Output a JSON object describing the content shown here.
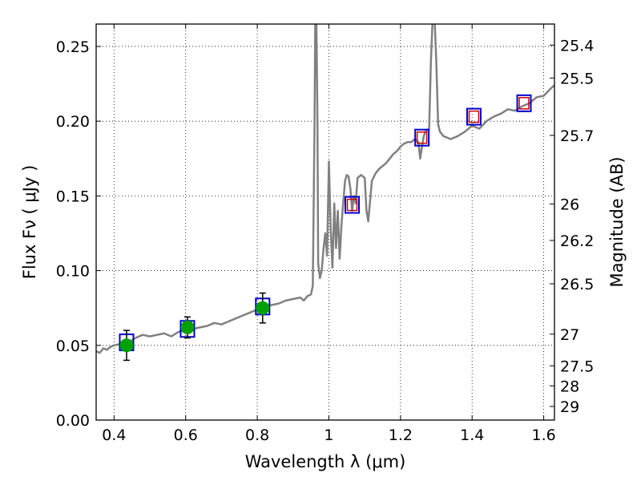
{
  "chart_data": {
    "type": "line",
    "title": "",
    "xlabel": "Wavelength  λ (μm)",
    "ylabel": "Flux  Fν  ( μJy )",
    "y2label": "Magnitude (AB)",
    "xlim": [
      0.35,
      1.63
    ],
    "ylim": [
      0.0,
      0.265
    ],
    "grid": true,
    "x_ticks": [
      0.4,
      0.6,
      0.8,
      1.0,
      1.2,
      1.4,
      1.6
    ],
    "x_tick_labels": [
      "0.4",
      "0.6",
      "0.8",
      "1",
      "1.2",
      "1.4",
      "1.6"
    ],
    "y_ticks": [
      0.0,
      0.05,
      0.1,
      0.15,
      0.2,
      0.25
    ],
    "y_tick_labels": [
      "0.00",
      "0.05",
      "0.10",
      "0.15",
      "0.20",
      "0.25"
    ],
    "y2_ticks": [
      {
        "flux": 0.2509,
        "label": "25.4"
      },
      {
        "flux": 0.2289,
        "label": "25.5"
      },
      {
        "flux": 0.1905,
        "label": "25.7"
      },
      {
        "flux": 0.1445,
        "label": "26"
      },
      {
        "flux": 0.1202,
        "label": "26.2"
      },
      {
        "flux": 0.0912,
        "label": "26.5"
      },
      {
        "flux": 0.0575,
        "label": "27"
      },
      {
        "flux": 0.0363,
        "label": "27.5"
      },
      {
        "flux": 0.0229,
        "label": "28"
      },
      {
        "flux": 0.0091,
        "label": "29"
      }
    ],
    "series": [
      {
        "name": "model spectrum",
        "color": "#808080",
        "x": [
          0.35,
          0.36,
          0.37,
          0.38,
          0.39,
          0.4,
          0.42,
          0.44,
          0.46,
          0.48,
          0.5,
          0.52,
          0.54,
          0.56,
          0.58,
          0.6,
          0.62,
          0.64,
          0.66,
          0.68,
          0.7,
          0.72,
          0.74,
          0.76,
          0.78,
          0.8,
          0.82,
          0.84,
          0.86,
          0.88,
          0.9,
          0.92,
          0.93,
          0.94,
          0.95,
          0.955,
          0.96,
          0.962,
          0.965,
          0.968,
          0.97,
          0.975,
          0.98,
          0.985,
          0.99,
          0.995,
          1.0,
          1.005,
          1.01,
          1.015,
          1.02,
          1.025,
          1.03,
          1.035,
          1.04,
          1.045,
          1.05,
          1.055,
          1.06,
          1.065,
          1.07,
          1.075,
          1.08,
          1.09,
          1.1,
          1.105,
          1.11,
          1.12,
          1.13,
          1.14,
          1.15,
          1.16,
          1.17,
          1.18,
          1.19,
          1.2,
          1.21,
          1.22,
          1.23,
          1.24,
          1.25,
          1.255,
          1.26,
          1.265,
          1.27,
          1.28,
          1.285,
          1.29,
          1.295,
          1.3,
          1.305,
          1.31,
          1.32,
          1.34,
          1.36,
          1.38,
          1.4,
          1.42,
          1.44,
          1.46,
          1.48,
          1.5,
          1.52,
          1.54,
          1.56,
          1.58,
          1.6,
          1.62,
          1.63
        ],
        "y": [
          0.046,
          0.045,
          0.048,
          0.047,
          0.049,
          0.05,
          0.051,
          0.052,
          0.055,
          0.057,
          0.056,
          0.057,
          0.058,
          0.056,
          0.059,
          0.06,
          0.061,
          0.062,
          0.063,
          0.065,
          0.064,
          0.066,
          0.068,
          0.07,
          0.072,
          0.074,
          0.076,
          0.077,
          0.078,
          0.08,
          0.081,
          0.082,
          0.08,
          0.083,
          0.084,
          0.09,
          0.2,
          0.27,
          0.27,
          0.2,
          0.105,
          0.095,
          0.1,
          0.115,
          0.125,
          0.11,
          0.173,
          0.128,
          0.102,
          0.145,
          0.115,
          0.14,
          0.108,
          0.13,
          0.145,
          0.16,
          0.164,
          0.163,
          0.155,
          0.14,
          0.15,
          0.145,
          0.162,
          0.164,
          0.162,
          0.14,
          0.133,
          0.16,
          0.165,
          0.168,
          0.17,
          0.172,
          0.175,
          0.178,
          0.18,
          0.183,
          0.185,
          0.186,
          0.186,
          0.188,
          0.186,
          0.175,
          0.183,
          0.19,
          0.193,
          0.195,
          0.24,
          0.27,
          0.27,
          0.24,
          0.198,
          0.193,
          0.19,
          0.188,
          0.19,
          0.193,
          0.197,
          0.195,
          0.2,
          0.203,
          0.205,
          0.208,
          0.207,
          0.21,
          0.212,
          0.216,
          0.217,
          0.222,
          0.224
        ]
      },
      {
        "name": "photometry (green)",
        "color": "#00a000",
        "x": [
          0.435,
          0.605,
          0.815
        ],
        "y": [
          0.05,
          0.062,
          0.075
        ],
        "yerr": [
          0.01,
          0.007,
          0.01
        ]
      },
      {
        "name": "model photometry (blue squares)",
        "color": "#0000cc",
        "x": [
          0.435,
          0.605,
          0.815,
          1.065,
          1.26,
          1.405,
          1.545
        ],
        "y": [
          0.052,
          0.061,
          0.076,
          0.144,
          0.189,
          0.203,
          0.212
        ]
      },
      {
        "name": "upper limits (red squares)",
        "color": "#cc0000",
        "x": [
          1.065,
          1.26,
          1.405,
          1.545
        ],
        "y": [
          0.144,
          0.189,
          0.203,
          0.212
        ]
      }
    ]
  }
}
